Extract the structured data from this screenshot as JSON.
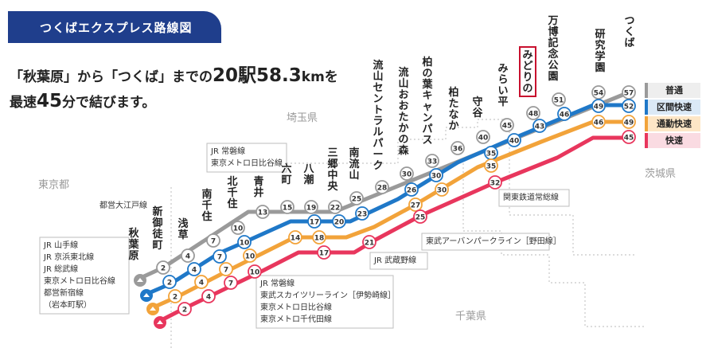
{
  "header": {
    "title": "つくばエクスプレス路線図"
  },
  "intro": {
    "part1": "「秋葉原」から「つくば」までの",
    "stations_count": "20駅",
    "distance": "58.3",
    "distance_unit": "km",
    "part2": "を",
    "part3": "最速",
    "minutes": "45",
    "part4": "分で結びます。"
  },
  "colors": {
    "header_bg": "#1f3e8c",
    "futsu": "#9a9a9a",
    "kukan_kaisoku": "#1f78c8",
    "tsukin_kaisoku": "#f2a33a",
    "kaisoku": "#e8365d",
    "highlight_box": "#c8102e"
  },
  "legend": [
    {
      "label": "普通",
      "color": "#9a9a9a",
      "bg": "#eeeeee"
    },
    {
      "label": "区間快速",
      "color": "#1f78c8",
      "bg": "#dbe9f6"
    },
    {
      "label": "通勤快速",
      "color": "#f2a33a",
      "bg": "#fde6c6"
    },
    {
      "label": "快速",
      "color": "#e8365d",
      "bg": "#fadbe2"
    }
  ],
  "prefectures": [
    "埼玉県",
    "東京都",
    "茨城県",
    "千葉県"
  ],
  "stations": [
    "秋葉原",
    "新御徒町",
    "浅草",
    "南千住",
    "北千住",
    "青井",
    "六町",
    "八潮",
    "三郷中央",
    "南流山",
    "流山セントラルパーク",
    "流山おおたかの森",
    "柏の葉キャンパス",
    "柏たなか",
    "守谷",
    "みらい平",
    "みどりの",
    "万博記念公園",
    "研究学園",
    "つくば"
  ],
  "highlight_station": "みどりの",
  "trains": {
    "futsu": [
      "2",
      "4",
      "7",
      "10",
      "13",
      "15",
      "19",
      "22",
      "25",
      "28",
      "30",
      "33",
      "36",
      "40",
      "45",
      "48",
      "51",
      "54",
      "57"
    ],
    "kukan": [
      "2",
      "4",
      "7",
      "10",
      "17",
      "20",
      "23",
      "26",
      "30",
      "35",
      "40",
      "43",
      "46",
      "49",
      "52"
    ],
    "tsukin": [
      "2",
      "4",
      "7",
      "10",
      "14",
      "18",
      "27",
      "30",
      "35",
      "46",
      "49"
    ],
    "kaisoku": [
      "2",
      "4",
      "7",
      "10",
      "17",
      "21",
      "25",
      "32",
      "45"
    ]
  },
  "transfers": {
    "akihabara": [
      "JR 山手線",
      "JR 京浜東北線",
      "JR 総武線",
      "東京メトロ日比谷線",
      "都営新宿線",
      "（岩本町駅）"
    ],
    "shinokachimachi": [
      "都営大江戸線"
    ],
    "minamisenju": [
      "JR 常磐線",
      "東京メトロ日比谷線"
    ],
    "kitasenju": [
      "JR 常磐線",
      "東武スカイツリーライン［伊勢崎線］",
      "東京メトロ日比谷線",
      "東京メトロ千代田線"
    ],
    "minaminagareyama": [
      "JR 武蔵野線"
    ],
    "nagareyamaotakanomori": [
      "東武アーバンパークライン［野田線］"
    ],
    "moriya": [
      "関東鉄道常総線"
    ]
  }
}
